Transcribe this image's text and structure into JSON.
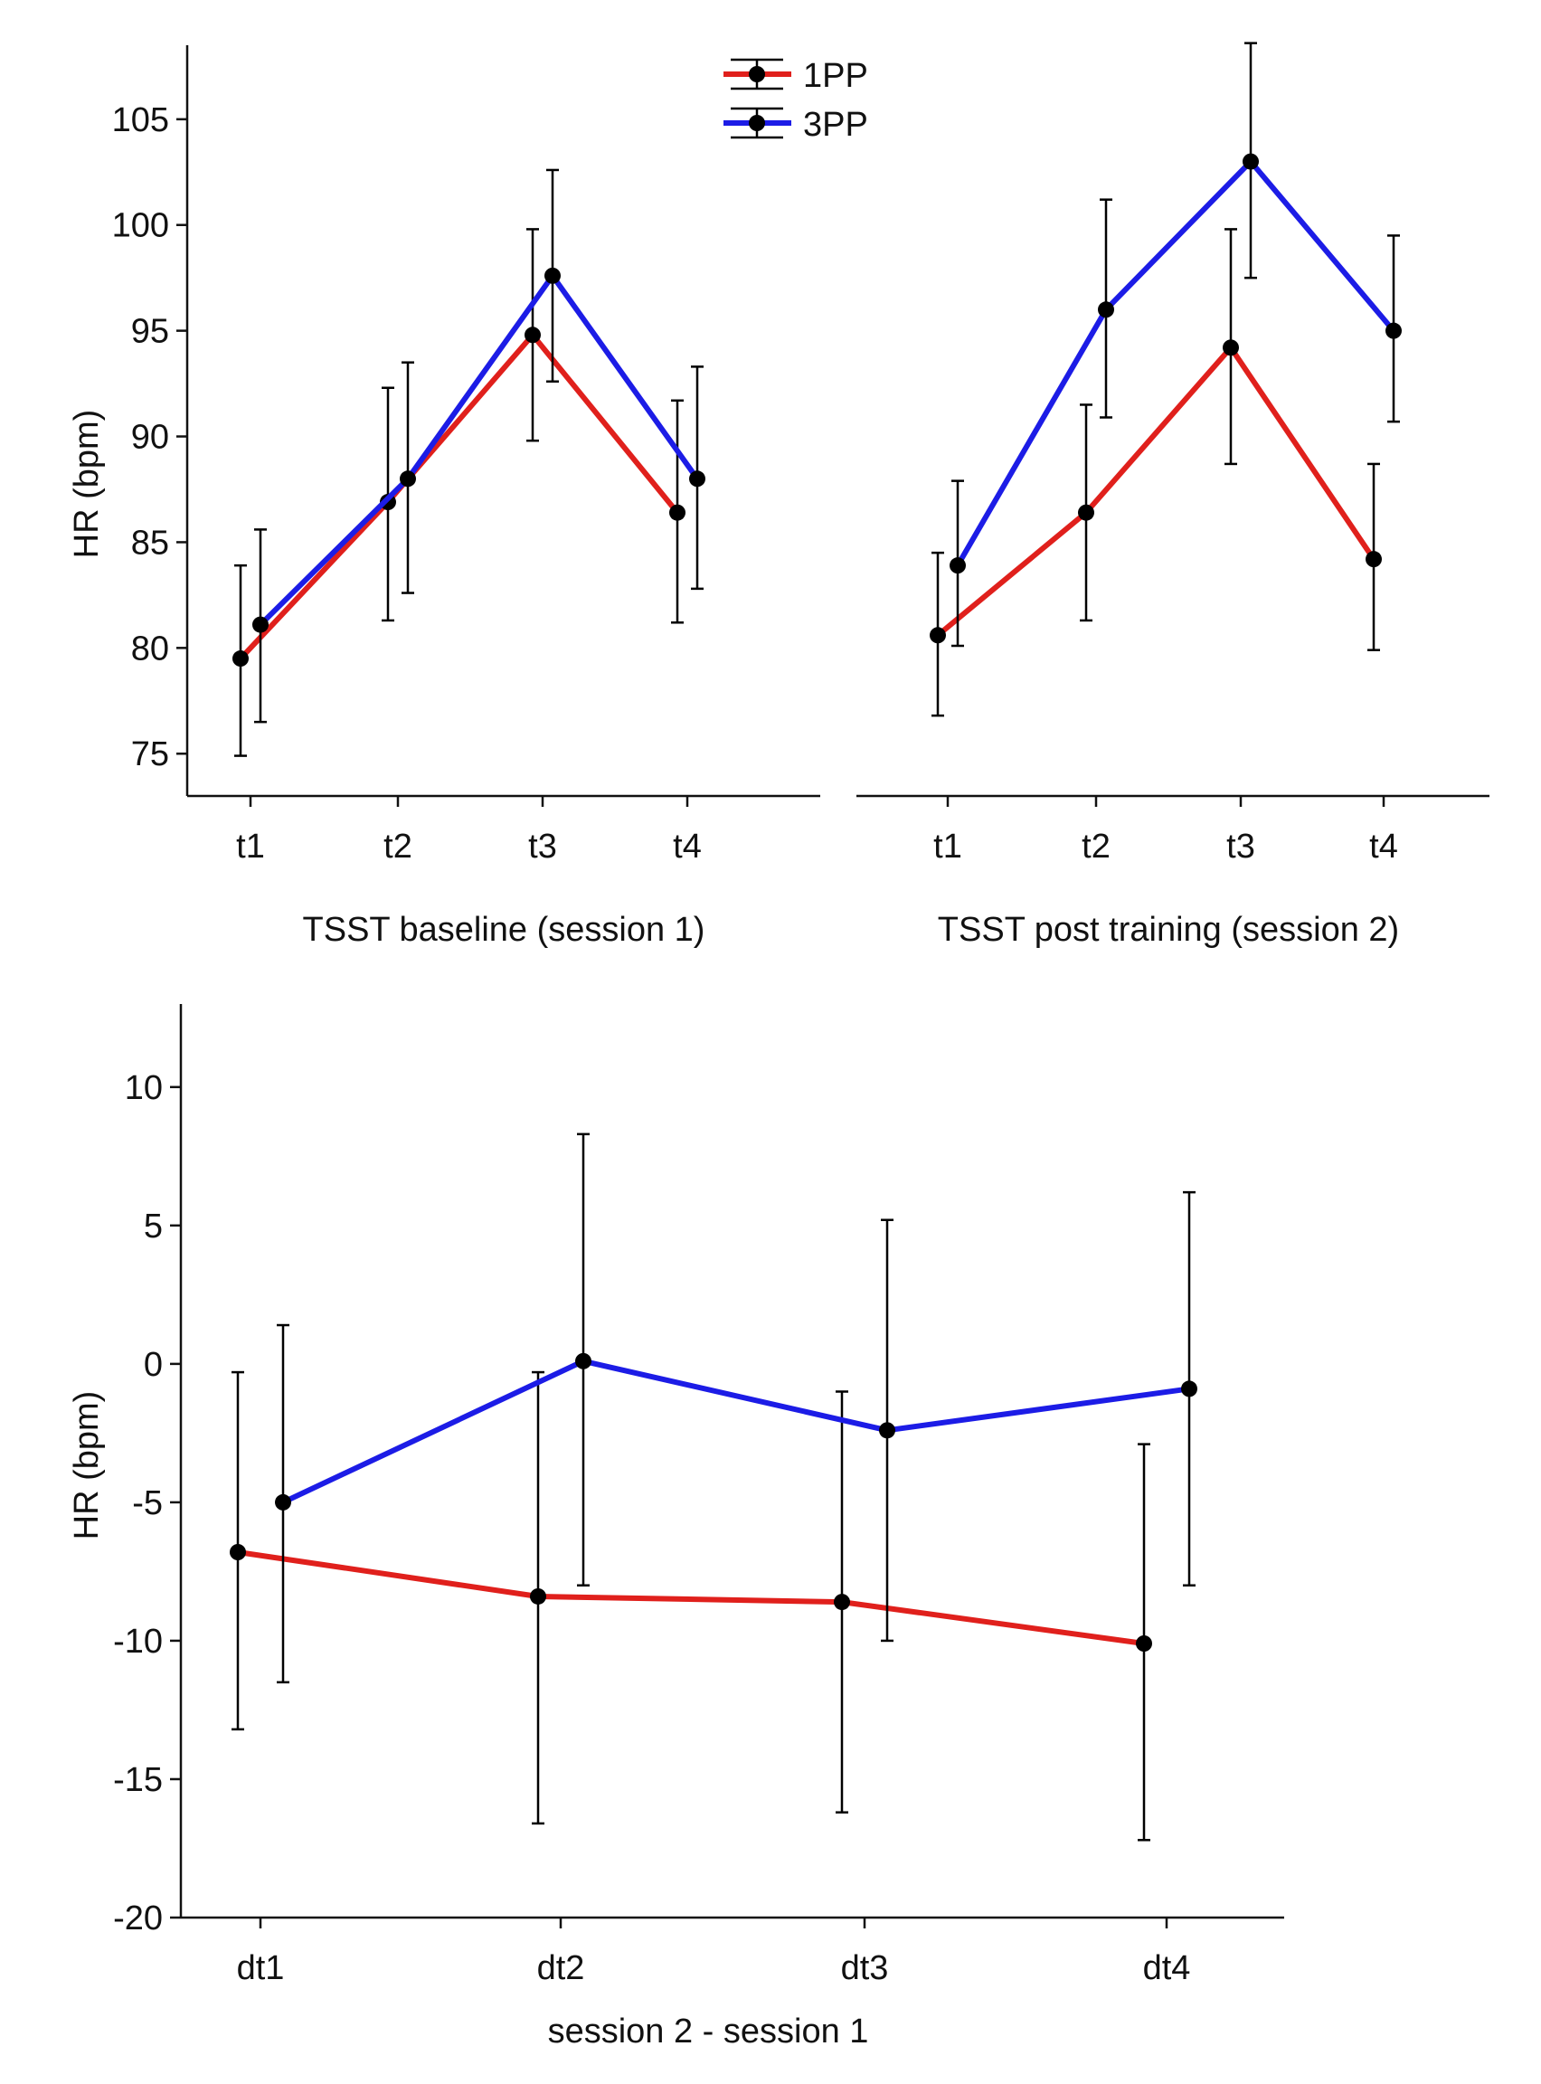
{
  "colors": {
    "1PP": "#e0201c",
    "3PP": "#1c1ce6",
    "axis": "#111111",
    "marker": "#000000"
  },
  "legend": {
    "items": [
      {
        "label": "1PP",
        "color": "#e0201c"
      },
      {
        "label": "3PP",
        "color": "#1c1ce6"
      }
    ]
  },
  "chart_data": [
    {
      "type": "line",
      "title": "",
      "xlabel": "TSST baseline (session 1)",
      "ylabel": "HR (bpm)",
      "ylim": [
        73,
        108.5
      ],
      "yticks": [
        75,
        80,
        85,
        90,
        95,
        100,
        105
      ],
      "categories": [
        "t1",
        "t2",
        "t3",
        "t4"
      ],
      "series": [
        {
          "name": "1PP",
          "values": [
            79.5,
            86.9,
            94.8,
            86.4
          ],
          "err_low": [
            74.9,
            81.3,
            89.8,
            81.2
          ],
          "err_high": [
            83.9,
            92.3,
            99.8,
            91.7
          ]
        },
        {
          "name": "3PP",
          "values": [
            81.1,
            88.0,
            97.6,
            88.0
          ],
          "err_low": [
            76.5,
            82.6,
            92.6,
            82.8
          ],
          "err_high": [
            85.6,
            93.5,
            102.6,
            93.3
          ]
        }
      ]
    },
    {
      "type": "line",
      "title": "",
      "xlabel": "TSST post training (session 2)",
      "ylabel": "",
      "ylim": [
        73,
        108.5
      ],
      "categories": [
        "t1",
        "t2",
        "t3",
        "t4"
      ],
      "series": [
        {
          "name": "1PP",
          "values": [
            80.6,
            86.4,
            94.2,
            84.2
          ],
          "err_low": [
            76.8,
            81.3,
            88.7,
            79.9
          ],
          "err_high": [
            84.5,
            91.5,
            99.8,
            88.7
          ]
        },
        {
          "name": "3PP",
          "values": [
            83.9,
            96.0,
            103.0,
            95.0
          ],
          "err_low": [
            80.1,
            90.9,
            97.5,
            90.7
          ],
          "err_high": [
            87.9,
            101.2,
            108.6,
            99.5
          ]
        }
      ]
    },
    {
      "type": "line",
      "title": "",
      "xlabel": "session 2 - session 1",
      "ylabel": "HR (bpm)",
      "ylim": [
        -20,
        13
      ],
      "yticks": [
        -20,
        -15,
        -10,
        -5,
        0,
        5,
        10
      ],
      "categories": [
        "dt1",
        "dt2",
        "dt3",
        "dt4"
      ],
      "series": [
        {
          "name": "1PP",
          "values": [
            -6.8,
            -8.4,
            -8.6,
            -10.1
          ],
          "err_low": [
            -13.2,
            -16.6,
            -16.2,
            -17.2
          ],
          "err_high": [
            -0.3,
            -0.3,
            -1.0,
            -2.9
          ]
        },
        {
          "name": "3PP",
          "values": [
            -5.0,
            0.1,
            -2.4,
            -0.9
          ],
          "err_low": [
            -11.5,
            -8.0,
            -10.0,
            -8.0
          ],
          "err_high": [
            1.4,
            8.3,
            5.2,
            6.2
          ]
        }
      ]
    }
  ]
}
